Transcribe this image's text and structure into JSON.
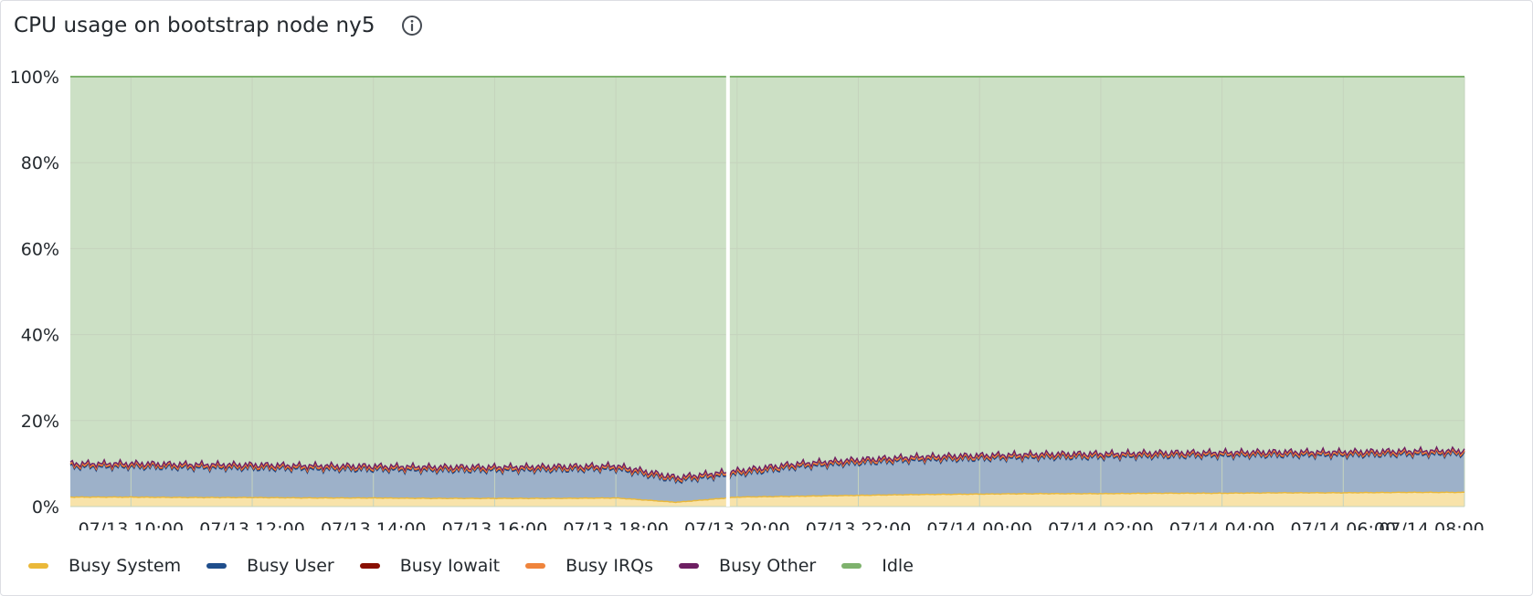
{
  "panel": {
    "title": "CPU usage on bootstrap node ny5",
    "info_icon": "info-circle-icon"
  },
  "colors": {
    "busy_system": "#eab839",
    "busy_user": "#1f4e8c",
    "busy_iowait": "#890f02",
    "busy_irqs": "#ef843c",
    "busy_other": "#6d1f62",
    "idle": "#7eb26d",
    "grid": "#c5d3bd"
  },
  "chart_data": {
    "type": "area",
    "stacked": true,
    "y_unit": "%",
    "ylim": [
      0,
      100
    ],
    "y_ticks": [
      "0%",
      "20%",
      "40%",
      "60%",
      "80%",
      "100%"
    ],
    "y_tick_values": [
      0,
      20,
      40,
      60,
      80,
      100
    ],
    "x_range": [
      "07/13 09:00",
      "07/14 08:00"
    ],
    "x_ticks": [
      "07/13 10:00",
      "07/13 12:00",
      "07/13 14:00",
      "07/13 16:00",
      "07/13 18:00",
      "07/13 20:00",
      "07/13 22:00",
      "07/14 00:00",
      "07/14 02:00",
      "07/14 04:00",
      "07/14 06:00",
      "07/14 08:00"
    ],
    "gap_at": "07/13 20:00",
    "x": [
      "07/13 09:00",
      "07/13 10:00",
      "07/13 11:00",
      "07/13 12:00",
      "07/13 13:00",
      "07/13 14:00",
      "07/13 15:00",
      "07/13 16:00",
      "07/13 17:00",
      "07/13 18:00",
      "07/13 19:00",
      "07/13 20:00",
      "07/13 21:00",
      "07/13 22:00",
      "07/13 23:00",
      "07/14 00:00",
      "07/14 01:00",
      "07/14 02:00",
      "07/14 03:00",
      "07/14 04:00",
      "07/14 05:00",
      "07/14 06:00",
      "07/14 07:00",
      "07/14 08:00"
    ],
    "series": [
      {
        "name": "Busy System",
        "color_key": "busy_system",
        "values": [
          2.2,
          2.2,
          2.1,
          2.1,
          2.0,
          2.0,
          1.9,
          1.9,
          1.9,
          2.0,
          1.0,
          2.2,
          2.4,
          2.6,
          2.8,
          2.9,
          3.0,
          3.0,
          3.1,
          3.1,
          3.2,
          3.2,
          3.3,
          3.3
        ]
      },
      {
        "name": "Busy User",
        "color_key": "busy_user",
        "values": [
          7.0,
          7.0,
          6.9,
          6.8,
          6.7,
          6.6,
          6.5,
          6.5,
          6.6,
          6.7,
          5.0,
          5.3,
          6.8,
          7.5,
          8.0,
          8.2,
          8.4,
          8.5,
          8.6,
          8.7,
          8.7,
          8.7,
          8.8,
          8.9
        ]
      },
      {
        "name": "Busy Iowait",
        "color_key": "busy_iowait",
        "values": [
          0.3,
          0.3,
          0.3,
          0.3,
          0.3,
          0.3,
          0.3,
          0.3,
          0.3,
          0.3,
          0.3,
          0.3,
          0.3,
          0.3,
          0.3,
          0.3,
          0.3,
          0.3,
          0.3,
          0.3,
          0.3,
          0.3,
          0.3,
          0.3
        ]
      },
      {
        "name": "Busy IRQs",
        "color_key": "busy_irqs",
        "values": [
          0.1,
          0.1,
          0.1,
          0.1,
          0.1,
          0.1,
          0.1,
          0.1,
          0.1,
          0.1,
          0.1,
          0.1,
          0.1,
          0.1,
          0.1,
          0.1,
          0.1,
          0.1,
          0.1,
          0.1,
          0.1,
          0.1,
          0.1,
          0.1
        ]
      },
      {
        "name": "Busy Other",
        "color_key": "busy_other",
        "values": [
          0.4,
          0.4,
          0.4,
          0.4,
          0.4,
          0.4,
          0.4,
          0.4,
          0.4,
          0.4,
          0.4,
          0.4,
          0.4,
          0.4,
          0.4,
          0.4,
          0.4,
          0.4,
          0.4,
          0.4,
          0.4,
          0.4,
          0.4,
          0.4
        ]
      },
      {
        "name": "Idle",
        "color_key": "idle",
        "values": [
          90.0,
          90.0,
          90.2,
          90.3,
          90.5,
          90.6,
          90.8,
          90.8,
          90.7,
          90.5,
          93.2,
          91.7,
          90.0,
          89.1,
          88.4,
          88.1,
          87.8,
          87.7,
          87.5,
          87.4,
          87.3,
          87.3,
          87.1,
          87.0
        ]
      }
    ],
    "legend_position": "bottom",
    "grid": true
  }
}
